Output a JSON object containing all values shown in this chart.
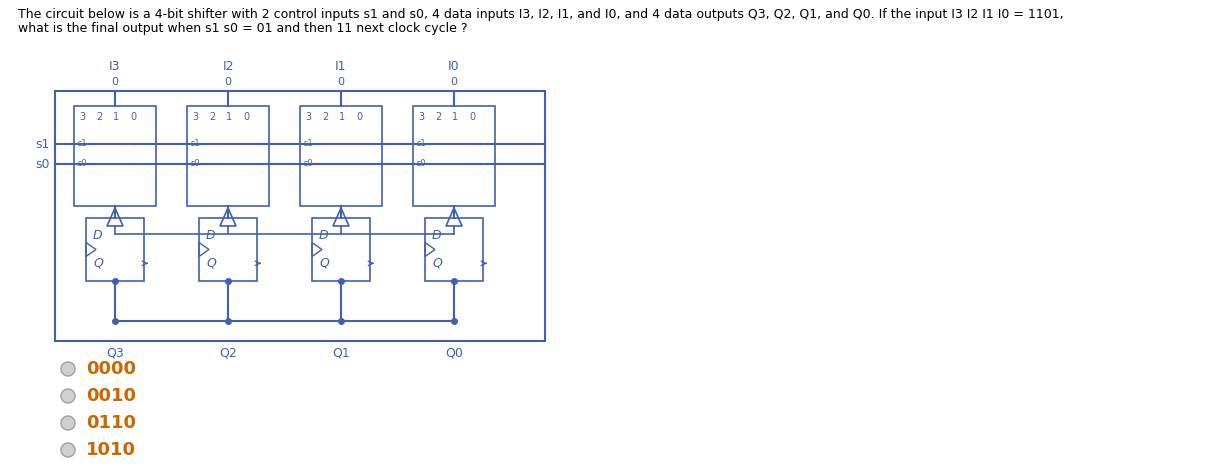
{
  "title_line1": "The circuit below is a 4-bit shifter with 2 control inputs s1 and s0, 4 data inputs I3, I2, I1, and I0, and 4 data outputs Q3, Q2, Q1, and Q0. If the input I3 I2 I1 I0 = 1101,",
  "title_line2": "what is the final output when s1 s0 = 01 and then 11 next clock cycle ?",
  "title_color": "#000000",
  "title_fontsize": 9.0,
  "circuit_color": "#4060b0",
  "bg_color": "#ffffff",
  "input_labels": [
    "I3",
    "I2",
    "I1",
    "I0"
  ],
  "output_labels": [
    "Q3",
    "Q2",
    "Q1",
    "Q0"
  ],
  "choices": [
    "0000",
    "0010",
    "0110",
    "1010"
  ],
  "choice_color": "#cc6600",
  "radio_color": "#d0d0d0",
  "radio_edge_color": "#a0a0a0"
}
